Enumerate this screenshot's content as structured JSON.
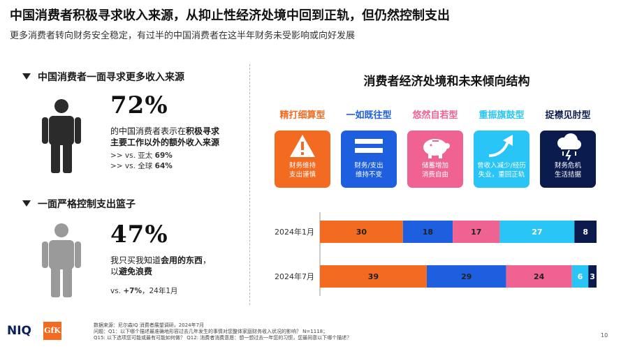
{
  "header": {
    "title": "中国消费者积极寻求收入来源，从抑止性经济处境中回到正轨，但仍然控制支出",
    "subtitle": "更多消费者转向财务安全稳定，有过半的中国消费者在这半年财务未受影响或向好发展"
  },
  "left": {
    "section1": {
      "heading": "中国消费者一面寻求更多收入来源",
      "stat": "72%",
      "desc_pre": "的中国消费者表示在",
      "desc_bold1": "积极寻求",
      "desc_bold2": "主要工作以外的额外收入来源",
      "cmp1_prefix": ">> vs. 亚太",
      "cmp1_value": "69%",
      "cmp2_prefix": ">> vs. 全球",
      "cmp2_value": "64%",
      "icon": "person-icon",
      "icon_color": "#2b2b2b"
    },
    "section2": {
      "heading": "一面严格控制支出篮子",
      "stat": "47%",
      "desc_pre": "我只买我知道",
      "desc_bold1": "会用的东西",
      "desc_mid": "，",
      "desc_line2_pre": "以",
      "desc_bold2": "避免浪费",
      "cmp_prefix": "vs.",
      "cmp_value": "+7%",
      "cmp_suffix": "，24年1月",
      "icon": "person-icon",
      "icon_color": "#9a9a9a"
    }
  },
  "right": {
    "chart_title": "消费者经济处境和未来倾向结构",
    "types": [
      {
        "label": "精打细算型",
        "color": "#f26b21",
        "icon": "warning-icon",
        "line1": "财务维持",
        "line2": "支出谨慎"
      },
      {
        "label": "一如既往型",
        "color": "#1e5fe0",
        "icon": "equals-icon",
        "line1": "财务/支出",
        "line2": "维持不变"
      },
      {
        "label": "悠然自若型",
        "color": "#f06292",
        "icon": "piggy-bank-icon",
        "line1": "储蓄增加",
        "line2": "消费自由"
      },
      {
        "label": "重振旗鼓型",
        "color": "#29c5f6",
        "icon": "curved-arrow-icon",
        "line1": "曾收入减少/经历",
        "line2": "失业，重回正轨"
      },
      {
        "label": "捉襟见肘型",
        "color": "#0b1b4d",
        "icon": "storm-cloud-icon",
        "line1": "财务危机",
        "line2": "生活拮据"
      }
    ]
  },
  "chart_data": {
    "type": "bar",
    "orientation": "horizontal-stacked",
    "title": "消费者经济处境和未来倾向结构",
    "categories": [
      "2024年1月",
      "2024年7月"
    ],
    "series": [
      {
        "name": "精打细算型",
        "color": "#f26b21",
        "values": [
          30,
          39
        ]
      },
      {
        "name": "一如既往型",
        "color": "#1e5fe0",
        "values": [
          18,
          29
        ]
      },
      {
        "name": "悠然自若型",
        "color": "#f06292",
        "values": [
          17,
          24
        ]
      },
      {
        "name": "重振旗鼓型",
        "color": "#29c5f6",
        "values": [
          27,
          6
        ]
      },
      {
        "name": "捉襟见肘型",
        "color": "#0b1b4d",
        "values": [
          8,
          3
        ]
      }
    ],
    "grid": false,
    "legend": "top"
  },
  "footer": {
    "line1": "数据来源：尼尔森IQ 消费者展望调研，2024年7月",
    "line2": "问题：Q1：以下哪个描述最准确地形容过去几年发生的事情对您整体家庭财务收入状况的影响？ N=1118；",
    "line3": "Q15: 以下选项您可能或最有可能如何做？ Q12: 消费者消费意愿：想一想过去一年您的习惯，您最同意以下哪个描述？",
    "logo1": "NIQ",
    "logo2": "GfK",
    "page": "10"
  }
}
